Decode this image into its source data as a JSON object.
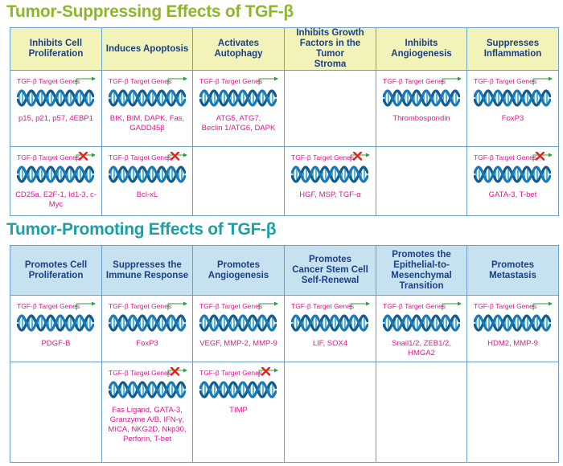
{
  "suppressing": {
    "title": "Tumor-Suppressing Effects of TGF-β",
    "headers": [
      "Inhibits Cell\nProliferation",
      "Induces Apoptosis",
      "Activates Autophagy",
      "Inhibits Growth\nFactors in the Tumor\nStroma",
      "Inhibits\nAngiogenesis",
      "Suppresses\nInflammation"
    ],
    "row1": [
      {
        "label": "TGF-β Target Genes",
        "genes": "p15, p21, p57, 4EBP1"
      },
      {
        "label": "TGF-β Target Genes",
        "genes": "BIK, BIM, DAPK, Fas,\nGADD45β"
      },
      {
        "label": "TGF-β Target Genes",
        "genes": "ATG5, ATG7,\nBeclin 1/ATG6, DAPK"
      },
      null,
      {
        "label": "TGF-β Target Genes",
        "genes": "Thrombospondin"
      },
      {
        "label": "TGF-β Target Genes",
        "genes": "FoxP3"
      }
    ],
    "row2": [
      {
        "label": "TGF-β Target Genes",
        "genes": "CD25a, E2F-1, Id1-3, c-Myc",
        "repressed": true
      },
      {
        "label": "TGF-β Target Genes",
        "genes": "Bcl-xL",
        "repressed": true
      },
      null,
      {
        "label": "TGF-β Target Genes",
        "genes": "HGF, MSP, TGF-α",
        "repressed": true
      },
      null,
      {
        "label": "TGF-β Target Genes",
        "genes": "GATA-3, T-bet",
        "repressed": true
      }
    ]
  },
  "promoting": {
    "title": "Tumor-Promoting Effects of TGF-β",
    "headers": [
      "Promotes Cell\nProliferation",
      "Suppresses the\nImmune Response",
      "Promotes\nAngiogenesis",
      "Promotes\nCancer Stem Cell\nSelf-Renewal",
      "Promotes the\nEpithelial-to-\nMesenchymal\nTransition",
      "Promotes Metastasis"
    ],
    "row1": [
      {
        "label": "TGF-β Target Genes",
        "genes": "PDGF-B"
      },
      {
        "label": "TGF-β Target Genes",
        "genes": "FoxP3"
      },
      {
        "label": "TGF-β Target Genes",
        "genes": "VEGF, MMP-2, MMP-9"
      },
      {
        "label": "TGF-β Target Genes",
        "genes": "LIF, SOX4"
      },
      {
        "label": "TGF-β Target Genes",
        "genes": "Snail1/2, ZEB1/2, HMGA2"
      },
      {
        "label": "TGF-β Target Genes",
        "genes": "HDM2, MMP-9"
      }
    ],
    "row2": [
      null,
      {
        "label": "TGF-β Target Genes",
        "genes": "Fas Ligand, GATA-3,\nGranzyme A/B, IFN-γ,\nMICA, NKG2D, Nkp30,\nPerforin, T-bet",
        "repressed": true
      },
      {
        "label": "TGF-β Target Genes",
        "genes": "TIMP",
        "repressed": true
      },
      null,
      null,
      null
    ]
  },
  "colors": {
    "suppress_title": "#8fb52a",
    "promote_title": "#1aa0a6",
    "header_text": "#1b3f86",
    "gene_text": "#e0188c",
    "arrow": "#2e9e3c",
    "repress_x": "#e0241b",
    "dna_dark": "#145a8c",
    "dna_light": "#2aa9d6"
  }
}
